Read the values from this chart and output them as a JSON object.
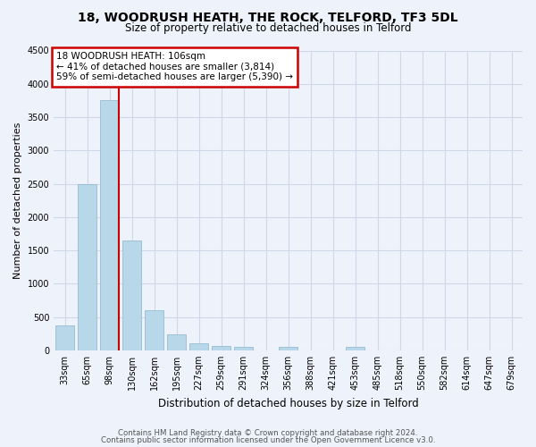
{
  "title": "18, WOODRUSH HEATH, THE ROCK, TELFORD, TF3 5DL",
  "subtitle": "Size of property relative to detached houses in Telford",
  "xlabel": "Distribution of detached houses by size in Telford",
  "ylabel": "Number of detached properties",
  "bar_labels": [
    "33sqm",
    "65sqm",
    "98sqm",
    "130sqm",
    "162sqm",
    "195sqm",
    "227sqm",
    "259sqm",
    "291sqm",
    "324sqm",
    "356sqm",
    "388sqm",
    "421sqm",
    "453sqm",
    "485sqm",
    "518sqm",
    "550sqm",
    "582sqm",
    "614sqm",
    "647sqm",
    "679sqm"
  ],
  "bar_values": [
    375,
    2500,
    3750,
    1650,
    600,
    240,
    105,
    60,
    50,
    0,
    50,
    0,
    0,
    55,
    0,
    0,
    0,
    0,
    0,
    0,
    0
  ],
  "bar_color": "#b8d8ea",
  "bar_edge_color": "#8ab4cc",
  "ylim": [
    0,
    4500
  ],
  "yticks": [
    0,
    500,
    1000,
    1500,
    2000,
    2500,
    3000,
    3500,
    4000,
    4500
  ],
  "vline_color": "#cc0000",
  "annotation_title": "18 WOODRUSH HEATH: 106sqm",
  "annotation_line1": "← 41% of detached houses are smaller (3,814)",
  "annotation_line2": "59% of semi-detached houses are larger (5,390) →",
  "annotation_box_color": "#cc0000",
  "grid_color": "#ced8e8",
  "background_color": "#eef2fa",
  "footer1": "Contains HM Land Registry data © Crown copyright and database right 2024.",
  "footer2": "Contains public sector information licensed under the Open Government Licence v3.0."
}
